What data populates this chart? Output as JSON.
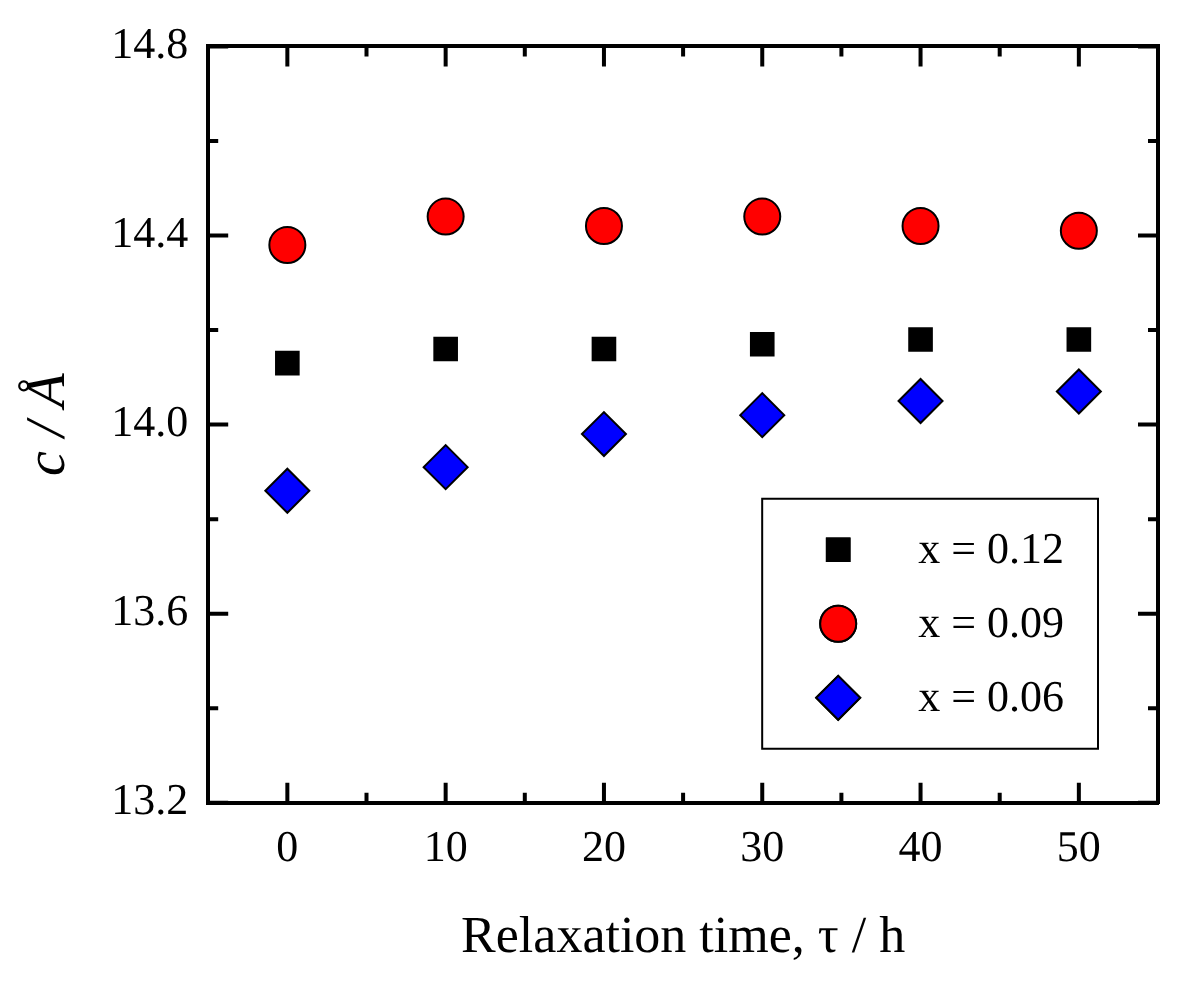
{
  "chart_data": {
    "type": "scatter",
    "xlabel": "Relaxation time, τ / h",
    "ylabel": "c / Å",
    "x": [
      0,
      10,
      20,
      30,
      40,
      50
    ],
    "series": [
      {
        "name": "x = 0.12",
        "color": "#000000",
        "marker": "square",
        "values": [
          14.13,
          14.16,
          14.16,
          14.17,
          14.18,
          14.18
        ]
      },
      {
        "name": "x = 0.09",
        "color": "#ff0000",
        "marker": "circle",
        "values": [
          14.38,
          14.44,
          14.42,
          14.44,
          14.42,
          14.41
        ]
      },
      {
        "name": "x = 0.06",
        "color": "#0000ff",
        "marker": "diamond",
        "values": [
          13.86,
          13.91,
          13.98,
          14.02,
          14.05,
          14.07
        ]
      }
    ],
    "xlim": [
      -5,
      55
    ],
    "xticks": [
      0,
      {
        "value": 5,
        "label": null
      },
      10,
      {
        "value": 15,
        "label": null
      },
      20,
      {
        "value": 25,
        "label": null
      },
      30,
      {
        "value": 35,
        "label": null
      },
      40,
      {
        "value": 45,
        "label": null
      },
      50
    ],
    "ylim": [
      13.2,
      14.8
    ],
    "yticks": [
      {
        "value": 13.2,
        "label": "13.2"
      },
      {
        "value": 13.4,
        "label": null
      },
      {
        "value": 13.6,
        "label": "13.6"
      },
      {
        "value": 13.8,
        "label": null
      },
      {
        "value": 14.0,
        "label": "14.0"
      },
      {
        "value": 14.2,
        "label": null
      },
      {
        "value": 14.4,
        "label": "14.4"
      },
      {
        "value": 14.6,
        "label": null
      },
      {
        "value": 14.8,
        "label": "14.8"
      }
    ],
    "grid": false,
    "legend": "bottom right"
  }
}
